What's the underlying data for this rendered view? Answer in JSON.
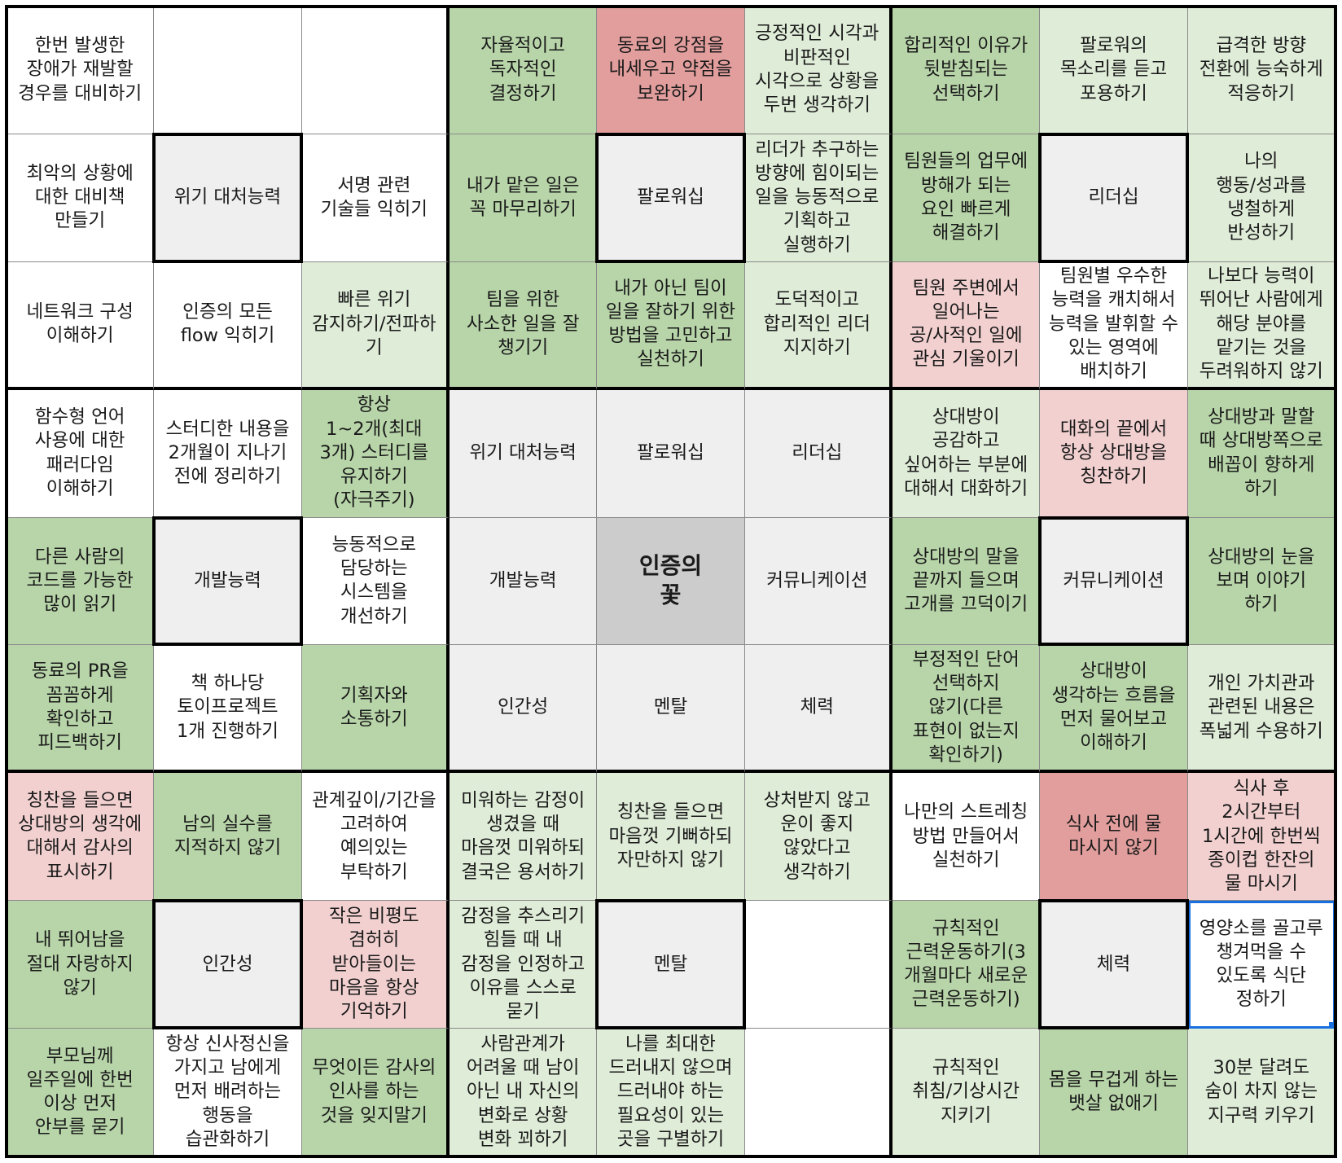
{
  "cells": [
    [
      "한번 발생한\n장애가 재발할\n경우를 대비하기",
      "",
      "",
      "자율적이고\n독자적인\n결정하기",
      "동료의 강점을\n내세우고 약점을\n보완하기",
      "긍정적인 시각과\n비판적인\n시각으로 상황을\n두번 생각하기",
      "합리적인 이유가\n뒷받침되는\n선택하기",
      "팔로워의\n목소리를 듣고\n포용하기",
      "급격한 방향\n전환에 능숙하게\n적응하기"
    ],
    [
      "최악의 상황에\n대한 대비책\n만들기",
      "위기 대처능력",
      "서명 관련\n기술들 익히기",
      "내가 맡은 일은\n꼭 마무리하기",
      "팔로워십",
      "리더가 추구하는\n방향에 힘이되는\n일을 능동적으로\n기획하고\n실행하기",
      "팀원들의 업무에\n방해가 되는\n요인 빠르게\n해결하기",
      "리더십",
      "나의\n행동/성과를\n냉철하게\n반성하기"
    ],
    [
      "네트워크 구성\n이해하기",
      "인증의 모든\nflow 익히기",
      "빠른 위기\n감지하기/전파하\n기",
      "팀을 위한\n사소한 일을 잘\n챙기기",
      "내가 아닌 팀이\n일을 잘하기 위한\n방법을 고민하고\n실천하기",
      "도덕적이고\n합리적인 리더\n지지하기",
      "팀원 주변에서\n일어나는\n공/사적인 일에\n관심 기울이기",
      "팀원별 우수한\n능력을 캐치해서\n능력을 발휘할 수\n있는 영역에\n배치하기",
      "나보다 능력이\n뛰어난 사람에게\n해당 분야를\n맡기는 것을\n두려워하지 않기"
    ],
    [
      "함수형 언어\n사용에 대한\n패러다임\n이해하기",
      "스터디한 내용을\n2개월이 지나기\n전에 정리하기",
      "항상\n1~2개(최대\n3개) 스터디를\n유지하기\n(자극주기)",
      "위기 대처능력",
      "팔로워십",
      "리더십",
      "상대방이\n공감하고\n싶어하는 부분에\n대해서 대화하기",
      "대화의 끝에서\n항상 상대방을\n칭찬하기",
      "상대방과 말할\n때 상대방쪽으로\n배꼽이 향하게\n하기"
    ],
    [
      "다른 사람의\n코드를 가능한\n많이 읽기",
      "개발능력",
      "능동적으로\n담당하는\n시스템을\n개선하기",
      "개발능력",
      "인증의\n꽃",
      "커뮤니케이션",
      "상대방의 말을\n끝까지 들으며\n고개를 끄덕이기",
      "커뮤니케이션",
      "상대방의 눈을\n보며 이야기\n하기"
    ],
    [
      "동료의 PR을\n꼼꼼하게\n확인하고\n피드백하기",
      "책 하나당\n토이프로젝트\n1개 진행하기",
      "기획자와\n소통하기",
      "인간성",
      "멘탈",
      "체력",
      "부정적인 단어\n선택하지\n않기(다른\n표현이 없는지\n확인하기)",
      "상대방이\n생각하는 흐름을\n먼저 물어보고\n이해하기",
      "개인 가치관과\n관련된 내용은\n폭넓게 수용하기"
    ],
    [
      "칭찬을 들으면\n상대방의 생각에\n대해서 감사의\n표시하기",
      "남의 실수를\n지적하지 않기",
      "관계깊이/기간을\n고려하여\n예의있는\n부탁하기",
      "미워하는 감정이\n생겼을 때\n마음껏 미워하되\n결국은 용서하기",
      "칭찬을 들으면\n마음껏 기뻐하되\n자만하지 않기",
      "상처받지 않고\n운이 좋지\n않았다고\n생각하기",
      "나만의 스트레칭\n방법 만들어서\n실천하기",
      "식사 전에 물\n마시지 않기",
      "식사 후\n2시간부터\n1시간에 한번씩\n종이컵 한잔의\n물 마시기"
    ],
    [
      "내 뛰어남을\n절대 자랑하지\n않기",
      "인간성",
      "작은 비평도\n겸허히\n받아들이는\n마음을 항상\n기억하기",
      "감정을 추스리기\n힘들 때 내\n감정을 인정하고\n이유를 스스로\n묻기",
      "멘탈",
      "",
      "규칙적인\n근력운동하기(3\n개월마다 새로운\n근력운동하기)",
      "체력",
      "영양소를 골고루\n챙겨먹을 수\n있도록 식단\n정하기"
    ],
    [
      "부모님께\n일주일에 한번\n이상 먼저\n안부를 묻기",
      "항상 신사정신을\n가지고 남에게\n먼저 배려하는\n행동을\n습관화하기",
      "무엇이든 감사의\n인사를 하는\n것을 잊지말기",
      "사람관계가\n어려울 때 남이\n아닌 내 자신의\n변화로 상황\n변화 꾀하기",
      "나를 최대한\n드러내지 않으며\n드러내야 하는\n필요성이 있는\n곳을 구별하기",
      "",
      "규칙적인\n취침/기상시간\n지키기",
      "몸을 무겁게 하는\n뱃살 없애기",
      "30분 달려도\n숨이 차지 않는\n지구력 키우기"
    ]
  ],
  "colors": [
    [
      "w",
      "w",
      "w",
      "g",
      "r",
      "lg",
      "g",
      "lg",
      "lg"
    ],
    [
      "w",
      "gr",
      "w",
      "g",
      "gr",
      "lg",
      "g",
      "gr",
      "lg"
    ],
    [
      "w",
      "w",
      "lg",
      "g",
      "g",
      "lg",
      "p",
      "w",
      "lg"
    ],
    [
      "w",
      "w",
      "g",
      "gr",
      "gr",
      "gr",
      "lg",
      "p",
      "g"
    ],
    [
      "g",
      "gr",
      "w",
      "gr",
      "dk",
      "gr",
      "g",
      "gr",
      "g"
    ],
    [
      "g",
      "w",
      "g",
      "gr",
      "gr",
      "gr",
      "g",
      "g",
      "lg"
    ],
    [
      "p",
      "g",
      "w",
      "lg",
      "lg",
      "lg",
      "w",
      "r",
      "p"
    ],
    [
      "g",
      "gr",
      "p",
      "lg",
      "gr",
      "w",
      "g",
      "gr",
      "w"
    ],
    [
      "g",
      "w",
      "g",
      "lg",
      "lg",
      "w",
      "lg",
      "g",
      "lg"
    ]
  ],
  "palette": {
    "w": "#ffffff",
    "lg": "#dfecd8",
    "g": "#b8d5a9",
    "p": "#f2d0d0",
    "r": "#e29e9d",
    "gr": "#efefef",
    "dk": "#cccccc"
  },
  "selected_cell": [
    7,
    8
  ]
}
